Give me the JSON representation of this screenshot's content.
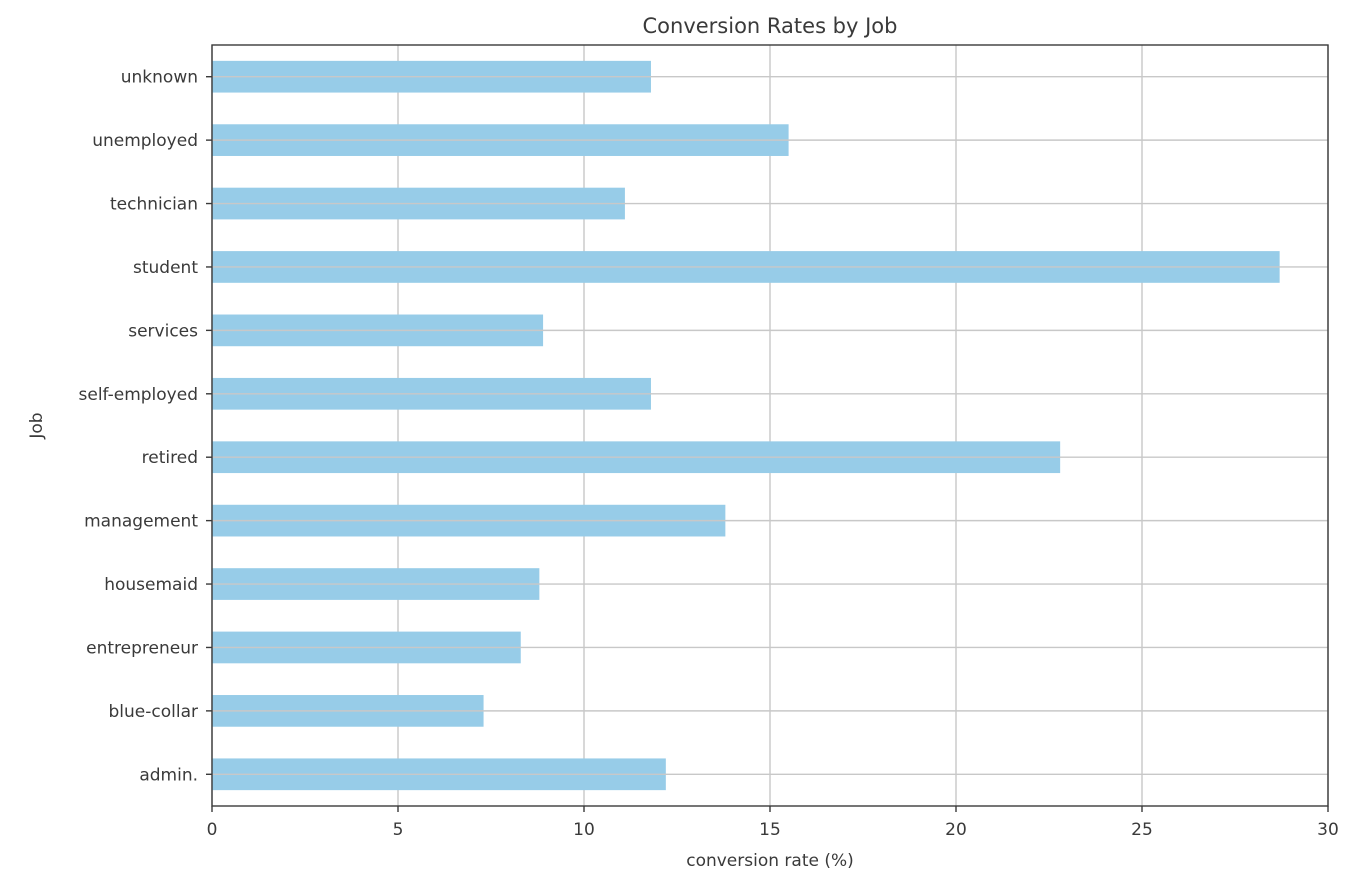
{
  "chart_data": {
    "type": "bar",
    "orientation": "horizontal",
    "title": "Conversion Rates by Job",
    "xlabel": "conversion rate (%)",
    "ylabel": "Job",
    "categories": [
      "admin.",
      "blue-collar",
      "entrepreneur",
      "housemaid",
      "management",
      "retired",
      "self-employed",
      "services",
      "student",
      "technician",
      "unemployed",
      "unknown"
    ],
    "values": [
      12.2,
      7.3,
      8.3,
      8.8,
      13.8,
      22.8,
      11.8,
      8.9,
      28.7,
      11.1,
      15.5,
      11.8
    ],
    "xlim": [
      0,
      30
    ],
    "xticks": [
      0,
      5,
      10,
      15,
      20,
      25,
      30
    ],
    "grid": true,
    "bar_color": "#97CCE8",
    "grid_color": "#c8c8c8",
    "axis_color": "#3a3a3a"
  }
}
